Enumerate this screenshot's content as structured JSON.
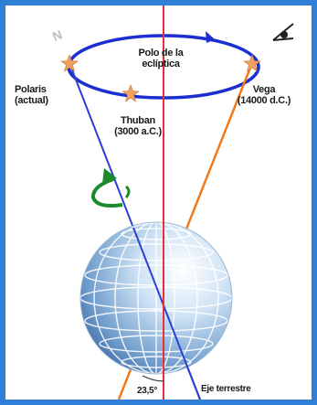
{
  "labels": {
    "pole": [
      "Polo de la",
      "eclíptica"
    ],
    "polaris": [
      "Polaris",
      "(actual)"
    ],
    "thuban": [
      "Thuban",
      "(3000 a.C.)"
    ],
    "vega": [
      "Vega",
      "(14000 d.C.)"
    ],
    "north": "N",
    "angle": "23,5°",
    "axis": "Eje terrestre"
  },
  "colors": {
    "frame": "#2f7fd6",
    "orbit": "#1b2fd0",
    "ecliptic_axis": "#e8303a",
    "current_axis": "#2a3fd6",
    "future_axis": "#f07a1c",
    "rotation_arrow": "#1a8a2a",
    "star": "#f0a060",
    "globe_light": "#e8f2fb",
    "globe_dark": "#3b6fa8"
  },
  "icons": [
    "star-icon",
    "eye-icon",
    "rotation-arrow-icon",
    "north-letter"
  ]
}
